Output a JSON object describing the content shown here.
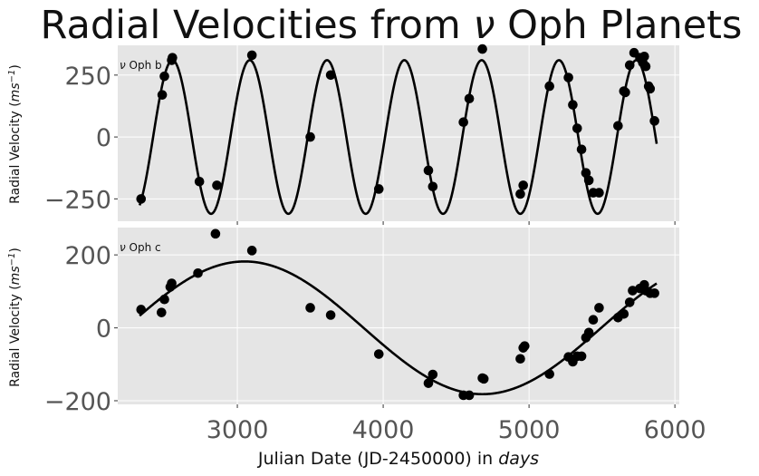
{
  "title_pre": "Radial Velocities from ",
  "title_nu": "ν",
  "title_post": " Oph Planets",
  "xlabel_pre": "Julian Date (JD-2450000) in ",
  "xlabel_unit": "days",
  "ylabel_pre": "Radial Velocity (",
  "ylabel_unit": "ms",
  "ylabel_exp": "−1",
  "ylabel_post": ")",
  "chart_data": [
    {
      "type": "scatter",
      "panel_label_nu": "ν",
      "panel_label": " Oph b",
      "xlim": [
        2180,
        6030
      ],
      "ylim": [
        -340,
        370
      ],
      "x_ticks": [
        3000,
        4000,
        5000,
        6000
      ],
      "x_tick_labels": [
        "3000",
        "4000",
        "5000",
        "6000"
      ],
      "y_ticks": [
        -250,
        0,
        250
      ],
      "y_tick_labels": [
        "−250",
        "0",
        "250"
      ],
      "grid": true,
      "model": {
        "amplitude": 310,
        "period": 530,
        "phase_time": 2555
      },
      "points": [
        [
          2340,
          -250
        ],
        [
          2485,
          170
        ],
        [
          2500,
          245
        ],
        [
          2550,
          310
        ],
        [
          2555,
          320
        ],
        [
          2740,
          -180
        ],
        [
          2860,
          -195
        ],
        [
          3100,
          330
        ],
        [
          3500,
          0
        ],
        [
          3640,
          250
        ],
        [
          3970,
          -210
        ],
        [
          4310,
          -135
        ],
        [
          4340,
          -200
        ],
        [
          4550,
          60
        ],
        [
          4590,
          155
        ],
        [
          4680,
          355
        ],
        [
          4940,
          -230
        ],
        [
          4960,
          -195
        ],
        [
          5140,
          205
        ],
        [
          5270,
          240
        ],
        [
          5300,
          130
        ],
        [
          5330,
          35
        ],
        [
          5360,
          -50
        ],
        [
          5390,
          -145
        ],
        [
          5410,
          -175
        ],
        [
          5440,
          -225
        ],
        [
          5480,
          -225
        ],
        [
          5610,
          45
        ],
        [
          5650,
          185
        ],
        [
          5660,
          180
        ],
        [
          5690,
          290
        ],
        [
          5720,
          340
        ],
        [
          5760,
          320
        ],
        [
          5780,
          300
        ],
        [
          5790,
          325
        ],
        [
          5800,
          285
        ],
        [
          5820,
          205
        ],
        [
          5830,
          195
        ],
        [
          5860,
          65
        ]
      ]
    },
    {
      "type": "scatter",
      "panel_label_nu": "ν",
      "panel_label": " Oph c",
      "xlim": [
        2180,
        6030
      ],
      "ylim": [
        -210,
        275
      ],
      "x_ticks": [
        3000,
        4000,
        5000,
        6000
      ],
      "x_tick_labels": [
        "3000",
        "4000",
        "5000",
        "6000"
      ],
      "y_ticks": [
        -200,
        0,
        200
      ],
      "y_tick_labels": [
        "−200",
        "0",
        "200"
      ],
      "grid": true,
      "model": {
        "amplitude": 182,
        "period": 3260,
        "phase_time": 3050
      },
      "points": [
        [
          2340,
          50
        ],
        [
          2480,
          42
        ],
        [
          2500,
          78
        ],
        [
          2540,
          112
        ],
        [
          2550,
          122
        ],
        [
          2730,
          150
        ],
        [
          2850,
          258
        ],
        [
          3100,
          212
        ],
        [
          3500,
          55
        ],
        [
          3640,
          35
        ],
        [
          3970,
          -72
        ],
        [
          4310,
          -152
        ],
        [
          4340,
          -128
        ],
        [
          4550,
          -185
        ],
        [
          4590,
          -185
        ],
        [
          4680,
          -138
        ],
        [
          4690,
          -140
        ],
        [
          4940,
          -85
        ],
        [
          4960,
          -55
        ],
        [
          4970,
          -50
        ],
        [
          5140,
          -127
        ],
        [
          5270,
          -80
        ],
        [
          5300,
          -93
        ],
        [
          5330,
          -78
        ],
        [
          5360,
          -78
        ],
        [
          5390,
          -27
        ],
        [
          5410,
          -13
        ],
        [
          5440,
          22
        ],
        [
          5480,
          55
        ],
        [
          5610,
          28
        ],
        [
          5650,
          38
        ],
        [
          5690,
          70
        ],
        [
          5710,
          102
        ],
        [
          5760,
          108
        ],
        [
          5790,
          118
        ],
        [
          5800,
          102
        ],
        [
          5830,
          95
        ],
        [
          5860,
          95
        ]
      ]
    }
  ]
}
